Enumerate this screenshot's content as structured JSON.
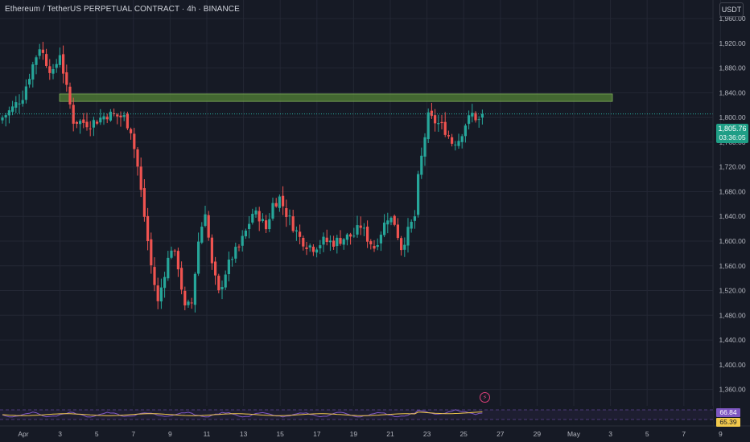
{
  "header": {
    "title": "Ethereum / TetherUS PERPETUAL CONTRACT · 4h · BINANCE",
    "currency_button": "USDT"
  },
  "colors": {
    "background": "#161a25",
    "grid": "#232734",
    "up": "#26a69a",
    "down": "#ef5350",
    "zone_fill": "#4f7a35",
    "price_line": "#26a69a",
    "osc_line_1": "#7e57c2",
    "osc_line_2": "#f2c94c"
  },
  "icons": {
    "event_marker": "lightning-bolt-icon"
  },
  "last_price": {
    "value": "1,805.76",
    "countdown": "03:36:05"
  },
  "oscillator": {
    "value_1": "66.84",
    "value_2": "65.39"
  },
  "chart_data": {
    "type": "candlestick",
    "title": "Ethereum / TetherUS PERPETUAL CONTRACT · 4h · BINANCE",
    "ylim": [
      1340,
      1990
    ],
    "y_ticks": [
      "1,960.00",
      "1,920.00",
      "1,880.00",
      "1,840.00",
      "1,800.00",
      "1,760.00",
      "1,720.00",
      "1,680.00",
      "1,640.00",
      "1,600.00",
      "1,560.00",
      "1,520.00",
      "1,480.00",
      "1,440.00",
      "1,400.00",
      "1,360.00"
    ],
    "y_tick_values": [
      1960,
      1920,
      1880,
      1840,
      1800,
      1760,
      1720,
      1680,
      1640,
      1600,
      1560,
      1520,
      1480,
      1440,
      1400,
      1360
    ],
    "x_ticks": [
      "Apr",
      "3",
      "5",
      "7",
      "9",
      "11",
      "13",
      "15",
      "17",
      "19",
      "21",
      "23",
      "25",
      "27",
      "29",
      "May",
      "3",
      "5",
      "7",
      "9"
    ],
    "grid": true,
    "resistance_zone": {
      "low": 1826,
      "high": 1838
    },
    "last_price": 1805.76,
    "anchors": [
      [
        0,
        1800
      ],
      [
        3,
        1815
      ],
      [
        6,
        1835
      ],
      [
        9,
        1885
      ],
      [
        11,
        1915
      ],
      [
        13,
        1890
      ],
      [
        15,
        1870
      ],
      [
        17,
        1905
      ],
      [
        19,
        1845
      ],
      [
        21,
        1795
      ],
      [
        26,
        1790
      ],
      [
        31,
        1805
      ],
      [
        36,
        1800
      ],
      [
        38,
        1780
      ],
      [
        40,
        1720
      ],
      [
        42,
        1640
      ],
      [
        44,
        1560
      ],
      [
        46,
        1500
      ],
      [
        48,
        1550
      ],
      [
        50,
        1590
      ],
      [
        52,
        1560
      ],
      [
        54,
        1490
      ],
      [
        56,
        1500
      ],
      [
        58,
        1600
      ],
      [
        60,
        1650
      ],
      [
        62,
        1560
      ],
      [
        64,
        1515
      ],
      [
        66,
        1550
      ],
      [
        68,
        1575
      ],
      [
        70,
        1590
      ],
      [
        72,
        1615
      ],
      [
        74,
        1645
      ],
      [
        76,
        1640
      ],
      [
        78,
        1620
      ],
      [
        80,
        1660
      ],
      [
        82,
        1670
      ],
      [
        84,
        1645
      ],
      [
        86,
        1625
      ],
      [
        88,
        1605
      ],
      [
        90,
        1595
      ],
      [
        92,
        1590
      ],
      [
        95,
        1600
      ],
      [
        98,
        1598
      ],
      [
        101,
        1605
      ],
      [
        104,
        1610
      ],
      [
        106,
        1625
      ],
      [
        108,
        1605
      ],
      [
        110,
        1590
      ],
      [
        112,
        1615
      ],
      [
        114,
        1640
      ],
      [
        116,
        1630
      ],
      [
        118,
        1590
      ],
      [
        120,
        1615
      ],
      [
        122,
        1640
      ],
      [
        123,
        1700
      ],
      [
        125,
        1770
      ],
      [
        126,
        1800
      ],
      [
        129,
        1790
      ],
      [
        131,
        1780
      ],
      [
        133,
        1760
      ],
      [
        135,
        1765
      ],
      [
        137,
        1790
      ],
      [
        139,
        1805
      ],
      [
        141,
        1795
      ],
      [
        142,
        1805.76
      ]
    ]
  }
}
